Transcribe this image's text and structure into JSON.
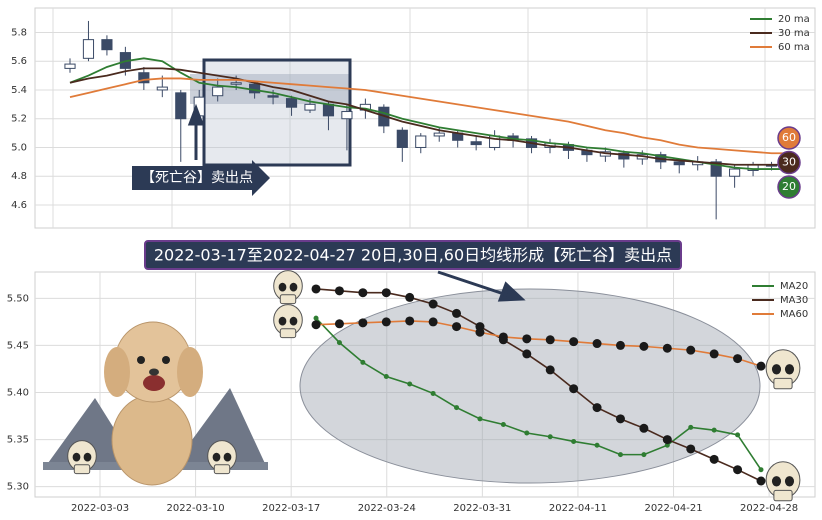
{
  "chart_data": [
    {
      "type": "candlestick",
      "open": [
        5.55,
        5.62,
        5.75,
        5.66,
        5.52,
        5.4,
        5.38,
        5.22,
        5.36,
        5.44,
        5.44,
        5.36,
        5.34,
        5.26,
        5.3,
        5.2,
        5.26,
        5.28,
        5.12,
        5.0,
        5.08,
        5.1,
        5.04,
        5.0,
        5.08,
        5.06,
        5.0,
        5.02,
        4.98,
        4.94,
        4.96,
        4.92,
        4.95,
        4.9,
        4.88,
        4.9,
        4.8,
        4.84,
        4.88,
        4.86
      ],
      "high": [
        5.62,
        5.88,
        5.78,
        5.7,
        5.56,
        5.5,
        5.4,
        5.4,
        5.48,
        5.5,
        5.46,
        5.4,
        5.36,
        5.34,
        5.32,
        5.3,
        5.34,
        5.3,
        5.14,
        5.1,
        5.14,
        5.12,
        5.08,
        5.12,
        5.1,
        5.08,
        5.06,
        5.04,
        5.0,
        5.0,
        4.98,
        4.98,
        4.97,
        4.92,
        4.94,
        4.92,
        4.88,
        4.9,
        4.9,
        4.9
      ],
      "low": [
        5.52,
        5.6,
        5.64,
        5.5,
        5.4,
        5.35,
        4.9,
        5.18,
        5.32,
        5.4,
        5.34,
        5.3,
        5.22,
        5.24,
        5.12,
        4.98,
        5.2,
        5.1,
        4.9,
        4.96,
        5.04,
        5.0,
        4.98,
        4.98,
        5.0,
        4.96,
        4.96,
        4.92,
        4.9,
        4.9,
        4.86,
        4.88,
        4.85,
        4.82,
        4.84,
        4.5,
        4.72,
        4.8,
        4.84,
        4.84
      ],
      "close": [
        5.58,
        5.75,
        5.68,
        5.55,
        5.45,
        5.42,
        5.2,
        5.35,
        5.42,
        5.45,
        5.38,
        5.35,
        5.28,
        5.3,
        5.22,
        5.25,
        5.3,
        5.15,
        5.0,
        5.08,
        5.1,
        5.05,
        5.02,
        5.08,
        5.05,
        5.0,
        5.03,
        4.98,
        4.95,
        4.97,
        4.92,
        4.95,
        4.9,
        4.88,
        4.9,
        4.8,
        4.85,
        4.88,
        4.87,
        4.88
      ],
      "up_color": "#ffffff",
      "down_color": "#3b4a66",
      "series": [
        {
          "name": "20 ma",
          "color": "#2f7d32",
          "values": [
            5.45,
            5.5,
            5.56,
            5.6,
            5.62,
            5.6,
            5.52,
            5.45,
            5.43,
            5.42,
            5.4,
            5.38,
            5.35,
            5.32,
            5.3,
            5.28,
            5.27,
            5.24,
            5.2,
            5.17,
            5.14,
            5.12,
            5.1,
            5.08,
            5.06,
            5.05,
            5.03,
            5.02,
            5.0,
            4.99,
            4.97,
            4.96,
            4.94,
            4.92,
            4.9,
            4.88,
            4.86,
            4.85,
            4.85,
            4.85
          ]
        },
        {
          "name": "30 ma",
          "color": "#4a2a1e",
          "values": [
            5.45,
            5.48,
            5.5,
            5.53,
            5.55,
            5.55,
            5.54,
            5.52,
            5.5,
            5.48,
            5.45,
            5.42,
            5.4,
            5.36,
            5.32,
            5.3,
            5.26,
            5.22,
            5.18,
            5.15,
            5.12,
            5.1,
            5.08,
            5.06,
            5.05,
            5.03,
            5.01,
            5.0,
            4.98,
            4.96,
            4.95,
            4.94,
            4.92,
            4.91,
            4.9,
            4.89,
            4.88,
            4.88,
            4.88,
            4.88
          ]
        },
        {
          "name": "60 ma",
          "color": "#e07b39",
          "values": [
            5.35,
            5.38,
            5.41,
            5.44,
            5.47,
            5.48,
            5.48,
            5.47,
            5.47,
            5.47,
            5.46,
            5.45,
            5.44,
            5.43,
            5.42,
            5.41,
            5.4,
            5.38,
            5.36,
            5.34,
            5.32,
            5.3,
            5.28,
            5.26,
            5.24,
            5.22,
            5.2,
            5.18,
            5.15,
            5.12,
            5.1,
            5.07,
            5.05,
            5.02,
            5.0,
            4.99,
            4.98,
            4.97,
            4.96,
            4.96
          ]
        }
      ],
      "ylim": [
        4.44,
        5.97
      ],
      "yticks": [
        4.6,
        4.8,
        {
          "value": 5,
          "label": "5.0"
        },
        5.2,
        5.4,
        5.6,
        5.8
      ],
      "grid": true,
      "legend": "upper right",
      "annotation": "【死亡谷】卖出点",
      "badges": [
        "60",
        "30",
        "20"
      ]
    },
    {
      "type": "line",
      "title": "2022-03-17至2022-04-27 20日,30日,60日均线形成【死亡谷】卖出点",
      "x": [
        11.3,
        12.525,
        13.75,
        14.975,
        16.2,
        17.425,
        18.65,
        19.875,
        21.1,
        22.325,
        23.55,
        24.775,
        26.0,
        27.225,
        28.45,
        29.675,
        30.9,
        32.125,
        33.35,
        34.575
      ],
      "series": [
        {
          "name": "MA20",
          "color": "#2f7d32",
          "values": [
            5.479,
            5.453,
            5.432,
            5.417,
            5.409,
            5.399,
            5.384,
            5.372,
            5.366,
            5.357,
            5.353,
            5.348,
            5.344,
            5.334,
            5.334,
            5.344,
            5.363,
            5.36,
            5.355,
            5.318
          ]
        },
        {
          "name": "MA30",
          "color": "#4a2a1e",
          "values": [
            5.51,
            5.508,
            5.506,
            5.506,
            5.501,
            5.494,
            5.484,
            5.47,
            5.456,
            5.441,
            5.424,
            5.404,
            5.384,
            5.372,
            5.362,
            5.35,
            5.34,
            5.329,
            5.318,
            5.306
          ]
        },
        {
          "name": "MA60",
          "color": "#e07b39",
          "values": [
            5.472,
            5.473,
            5.474,
            5.475,
            5.476,
            5.475,
            5.47,
            5.464,
            5.459,
            5.457,
            5.456,
            5.454,
            5.452,
            5.45,
            5.449,
            5.447,
            5.445,
            5.441,
            5.436,
            5.428
          ]
        }
      ],
      "xlim": [
        -3.4,
        37.4
      ],
      "xticks": [
        {
          "value": 0,
          "label": "2022-03-03"
        },
        {
          "value": 5,
          "label": "2022-03-10"
        },
        {
          "value": 10,
          "label": "2022-03-17"
        },
        {
          "value": 15,
          "label": "2022-03-24"
        },
        {
          "value": 20,
          "label": "2022-03-31"
        },
        {
          "value": 25,
          "label": "2022-04-11"
        },
        {
          "value": 30,
          "label": "2022-04-21"
        },
        {
          "value": 35,
          "label": "2022-04-28"
        }
      ],
      "ylim": [
        5.289,
        5.528
      ],
      "yticks": [
        {
          "value": 5.3,
          "label": "5.30"
        },
        5.35,
        {
          "value": 5.4,
          "label": "5.40"
        },
        5.45,
        {
          "value": 5.5,
          "label": "5.50"
        }
      ],
      "grid": true,
      "legend": "upper right"
    }
  ]
}
